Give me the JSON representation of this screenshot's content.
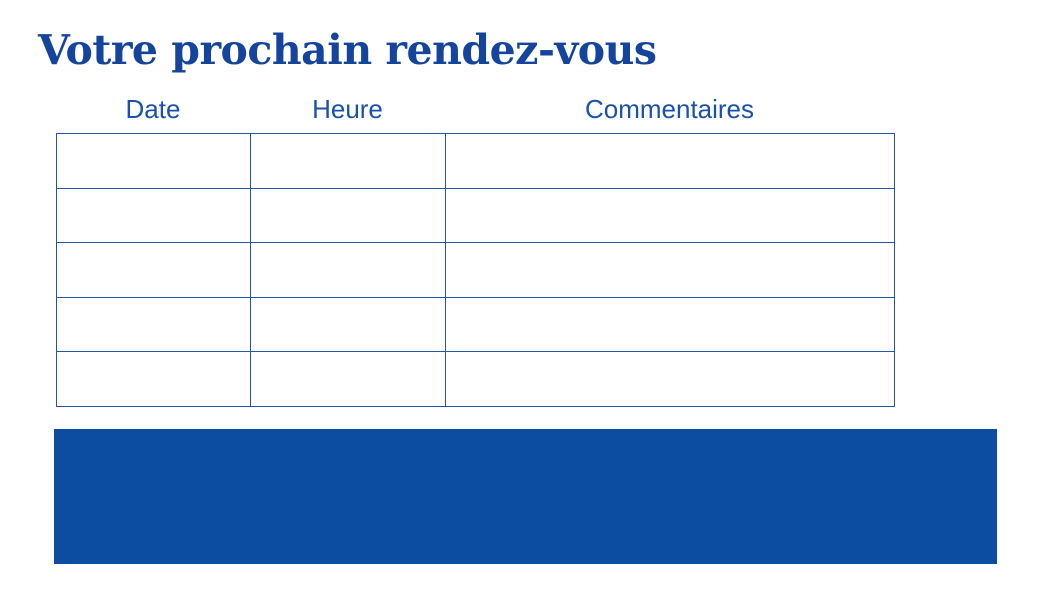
{
  "title": "Votre prochain rendez-vous",
  "table": {
    "headers": [
      "Date",
      "Heure",
      "Commentaires"
    ],
    "rows": [
      [
        "",
        "",
        ""
      ],
      [
        "",
        "",
        ""
      ],
      [
        "",
        "",
        ""
      ],
      [
        "",
        "",
        ""
      ],
      [
        "",
        "",
        ""
      ]
    ]
  },
  "colors": {
    "title": "#14449c",
    "header": "#1b51a8",
    "table_border": "#2456a7",
    "footer_block": "#0c4da2"
  }
}
